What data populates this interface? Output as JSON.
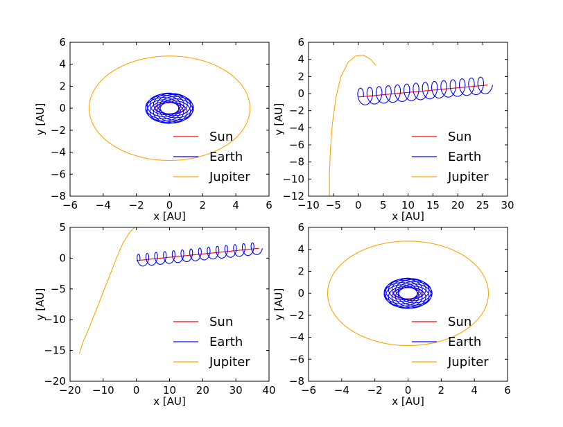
{
  "chart_data": [
    {
      "type": "line",
      "xlabel": "x [AU]",
      "ylabel": "y [AU]",
      "xlim": [
        -6,
        6
      ],
      "ylim": [
        -8,
        6
      ],
      "xticks": [
        -6,
        -4,
        -2,
        0,
        2,
        4,
        6
      ],
      "yticks": [
        -8,
        -6,
        -4,
        -2,
        0,
        2,
        4,
        6
      ],
      "legend_position": "lower-right",
      "series": [
        {
          "name": "Sun",
          "color": "#ff0000",
          "shape": "ellipse",
          "center": [
            0,
            0
          ],
          "radii": [
            0.9,
            0.5
          ]
        },
        {
          "name": "Earth",
          "color": "#0000ff",
          "shape": "ring",
          "center": [
            0,
            0
          ],
          "radii": [
            1.0,
            0.95
          ],
          "wobble": 0.45
        },
        {
          "name": "Jupiter",
          "color": "#ffa500",
          "shape": "ellipse",
          "center": [
            0,
            0
          ],
          "radii": [
            4.85,
            4.75
          ]
        }
      ]
    },
    {
      "type": "line",
      "xlabel": "x [AU]",
      "ylabel": "y [AU]",
      "xlim": [
        -10,
        30
      ],
      "ylim": [
        -12,
        6
      ],
      "xticks": [
        -10,
        -5,
        0,
        5,
        10,
        15,
        20,
        25,
        30
      ],
      "yticks": [
        -12,
        -10,
        -8,
        -6,
        -4,
        -2,
        0,
        2,
        4,
        6
      ],
      "legend_position": "lower-right",
      "series": [
        {
          "name": "Sun",
          "color": "#ff0000",
          "shape": "line",
          "start": [
            0,
            -0.4
          ],
          "end": [
            26,
            1.0
          ]
        },
        {
          "name": "Earth",
          "color": "#0000ff",
          "shape": "loops",
          "start": [
            0,
            -0.4
          ],
          "end": [
            26,
            1.0
          ],
          "loops": 14,
          "rx": 1.0,
          "ry": 1.0
        },
        {
          "name": "Jupiter",
          "color": "#ffa500",
          "shape": "path",
          "points": [
            [
              3.5,
              3.3
            ],
            [
              2.5,
              4.0
            ],
            [
              1.0,
              4.5
            ],
            [
              -0.5,
              4.4
            ],
            [
              -2.0,
              3.7
            ],
            [
              -3.5,
              2.0
            ],
            [
              -4.5,
              -0.5
            ],
            [
              -5.2,
              -3.5
            ],
            [
              -5.6,
              -6.5
            ],
            [
              -5.8,
              -9.5
            ],
            [
              -5.8,
              -12.0
            ]
          ]
        }
      ]
    },
    {
      "type": "line",
      "xlabel": "x [AU]",
      "ylabel": "y [AU]",
      "xlim": [
        -20,
        40
      ],
      "ylim": [
        -20,
        5
      ],
      "xticks": [
        -20,
        -10,
        0,
        10,
        20,
        30,
        40
      ],
      "yticks": [
        -20,
        -15,
        -10,
        -5,
        0,
        5
      ],
      "legend_position": "lower-right",
      "series": [
        {
          "name": "Sun",
          "color": "#ff0000",
          "shape": "line",
          "start": [
            0,
            -0.4
          ],
          "end": [
            37,
            1.6
          ]
        },
        {
          "name": "Earth",
          "color": "#0000ff",
          "shape": "loops",
          "start": [
            0,
            -0.4
          ],
          "end": [
            37,
            1.6
          ],
          "loops": 14,
          "rx": 1.0,
          "ry": 1.0
        },
        {
          "name": "Jupiter",
          "color": "#ffa500",
          "shape": "path",
          "points": [
            [
              -0.5,
              5.0
            ],
            [
              -2.0,
              4.2
            ],
            [
              -4.0,
              2.5
            ],
            [
              -6.0,
              0.0
            ],
            [
              -8.0,
              -2.8
            ],
            [
              -10.0,
              -5.5
            ],
            [
              -12.0,
              -8.3
            ],
            [
              -14.0,
              -11.0
            ],
            [
              -16.0,
              -13.5
            ],
            [
              -17.2,
              -15.5
            ]
          ]
        }
      ]
    },
    {
      "type": "line",
      "xlabel": "x [AU]",
      "ylabel": "y [AU]",
      "xlim": [
        -6,
        6
      ],
      "ylim": [
        -8,
        6
      ],
      "xticks": [
        -6,
        -4,
        -2,
        0,
        2,
        4,
        6
      ],
      "yticks": [
        -8,
        -6,
        -4,
        -2,
        0,
        2,
        4,
        6
      ],
      "legend_position": "lower-right",
      "series": [
        {
          "name": "Sun",
          "color": "#ff0000",
          "shape": "ellipse",
          "center": [
            0,
            0
          ],
          "radii": [
            0.9,
            0.5
          ]
        },
        {
          "name": "Earth",
          "color": "#0000ff",
          "shape": "ring",
          "center": [
            0,
            0
          ],
          "radii": [
            1.0,
            0.95
          ],
          "wobble": 0.45
        },
        {
          "name": "Jupiter",
          "color": "#ffa500",
          "shape": "ellipse",
          "center": [
            0,
            0
          ],
          "radii": [
            4.85,
            4.75
          ]
        }
      ]
    }
  ]
}
